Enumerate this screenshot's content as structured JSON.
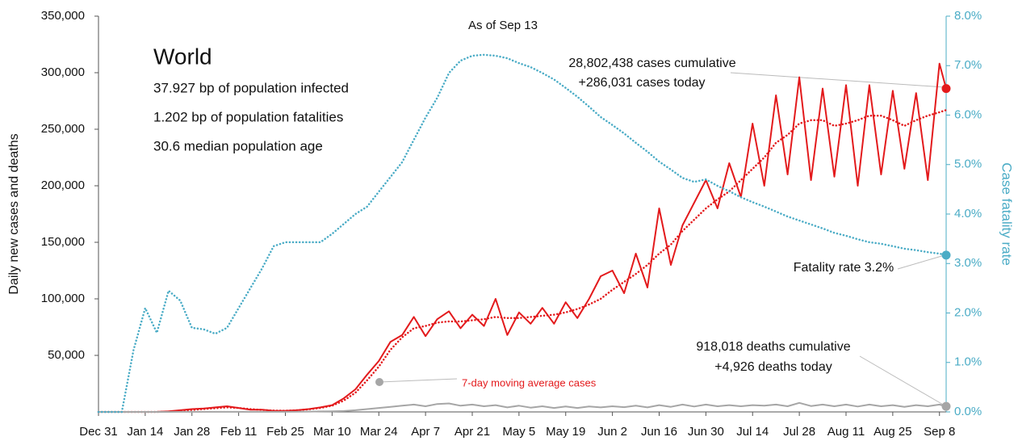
{
  "chart_data": {
    "type": "line",
    "title": "World",
    "subtitle": "As of Sep 13",
    "info": [
      "37.927 bp of population infected",
      "1.202 bp of population fatalities",
      "30.6 median population age"
    ],
    "y_label": "Daily new cases and deaths",
    "y2_label": "Case fatality rate",
    "annotations": {
      "cases": [
        "28,802,438  cases cumulative",
        "+286,031  cases today"
      ],
      "fatality": "Fatality rate 3.2%",
      "deaths": [
        "918,018  deaths cumulative",
        "+4,926  deaths today"
      ]
    },
    "x": [
      0,
      3.5,
      7,
      10.5,
      14,
      17.5,
      21,
      24.5,
      28,
      31.5,
      35,
      38.5,
      42,
      45.5,
      49,
      52.5,
      56,
      59.5,
      63,
      66.5,
      70,
      73.5,
      77,
      80.5,
      84,
      87.5,
      91,
      94.5,
      98,
      101.5,
      105,
      108.5,
      112,
      115.5,
      119,
      122.5,
      126,
      129.5,
      133,
      136.5,
      140,
      143.5,
      147,
      150.5,
      154,
      157.5,
      161,
      164.5,
      168,
      171.5,
      175,
      178.5,
      182,
      185.5,
      189,
      192.5,
      196,
      199.5,
      203,
      206.5,
      210,
      213.5,
      217,
      220.5,
      224,
      227.5,
      231,
      234.5,
      238,
      241.5,
      245,
      248.5,
      252,
      254
    ],
    "xlim": [
      0,
      254
    ],
    "xticks": [
      {
        "value": 0,
        "label": "Dec 31"
      },
      {
        "value": 14,
        "label": "Jan 14"
      },
      {
        "value": 28,
        "label": "Jan 28"
      },
      {
        "value": 42,
        "label": "Feb 11"
      },
      {
        "value": 56,
        "label": "Feb 25"
      },
      {
        "value": 70,
        "label": "Mar 10"
      },
      {
        "value": 84,
        "label": "Mar 24"
      },
      {
        "value": 98,
        "label": "Apr 7"
      },
      {
        "value": 112,
        "label": "Apr 21"
      },
      {
        "value": 126,
        "label": "May 5"
      },
      {
        "value": 140,
        "label": "May 19"
      },
      {
        "value": 154,
        "label": "Jun 2"
      },
      {
        "value": 168,
        "label": "Jun 16"
      },
      {
        "value": 182,
        "label": "Jun 30"
      },
      {
        "value": 196,
        "label": "Jul 14"
      },
      {
        "value": 210,
        "label": "Jul 28"
      },
      {
        "value": 224,
        "label": "Aug 11"
      },
      {
        "value": 238,
        "label": "Aug 25"
      },
      {
        "value": 252,
        "label": "Sep 8"
      }
    ],
    "ylim": [
      0,
      350000
    ],
    "yticks": [
      {
        "value": 50000,
        "label": "50,000"
      },
      {
        "value": 100000,
        "label": "100,000"
      },
      {
        "value": 150000,
        "label": "150,000"
      },
      {
        "value": 200000,
        "label": "200,000"
      },
      {
        "value": 250000,
        "label": "250,000"
      },
      {
        "value": 300000,
        "label": "300,000"
      },
      {
        "value": 350000,
        "label": "350,000"
      }
    ],
    "y2lim": [
      0,
      8
    ],
    "y2ticks": [
      {
        "value": 0,
        "label": "0.0%"
      },
      {
        "value": 1,
        "label": "1.0%"
      },
      {
        "value": 2,
        "label": "2.0%"
      },
      {
        "value": 3,
        "label": "3.0%"
      },
      {
        "value": 4,
        "label": "4.0%"
      },
      {
        "value": 5,
        "label": "5.0%"
      },
      {
        "value": 6,
        "label": "6.0%"
      },
      {
        "value": 7,
        "label": "7.0%"
      },
      {
        "value": 8,
        "label": "8.0%"
      }
    ],
    "series": [
      {
        "color": "#e31a1c",
        "style": "solid",
        "end_marker": true,
        "values": [
          0,
          0,
          0,
          0,
          0,
          100,
          600,
          1500,
          2500,
          3000,
          4000,
          5000,
          3500,
          2000,
          2000,
          1000,
          1000,
          1500,
          2500,
          4000,
          6000,
          12000,
          20000,
          33000,
          45000,
          62000,
          68000,
          84000,
          67000,
          82000,
          89000,
          74000,
          86000,
          76000,
          100000,
          68000,
          88000,
          78000,
          92000,
          78000,
          97000,
          83000,
          100000,
          120000,
          125000,
          105000,
          140000,
          110000,
          180000,
          130000,
          165000,
          185000,
          205000,
          180000,
          220000,
          190000,
          255000,
          200000,
          280000,
          210000,
          296000,
          205000,
          286000,
          208000,
          289000,
          200000,
          289000,
          210000,
          284000,
          215000,
          282000,
          205000,
          308000,
          286000
        ]
      },
      {
        "name": "7-day moving average cases",
        "color": "#e31a1c",
        "style": "dotted",
        "values": [
          0,
          0,
          0,
          0,
          0,
          0,
          300,
          1000,
          1800,
          2600,
          3300,
          4000,
          3500,
          2500,
          1800,
          1200,
          1100,
          1500,
          2300,
          3500,
          5500,
          10000,
          17000,
          28000,
          40000,
          55000,
          66000,
          74000,
          76000,
          79000,
          80000,
          80000,
          81000,
          82000,
          84000,
          83000,
          83000,
          84000,
          85000,
          86000,
          88000,
          91000,
          95000,
          100000,
          108000,
          115000,
          122000,
          130000,
          140000,
          148000,
          160000,
          170000,
          180000,
          188000,
          195000,
          205000,
          215000,
          225000,
          238000,
          245000,
          255000,
          258000,
          258000,
          253000,
          255000,
          258000,
          262000,
          262000,
          258000,
          253000,
          258000,
          262000,
          265000,
          267000
        ]
      },
      {
        "color": "#a6a6a6",
        "style": "solid",
        "end_marker": true,
        "values": [
          0,
          0,
          0,
          0,
          0,
          0,
          20,
          40,
          60,
          80,
          100,
          100,
          100,
          100,
          100,
          100,
          100,
          200,
          300,
          400,
          500,
          800,
          1500,
          2500,
          3500,
          4500,
          5500,
          6500,
          5000,
          7000,
          7500,
          5500,
          6500,
          5000,
          6000,
          4000,
          5500,
          3800,
          5000,
          3500,
          4800,
          3500,
          4800,
          4000,
          5000,
          4200,
          5500,
          4000,
          6000,
          4500,
          6500,
          4800,
          6500,
          5000,
          6000,
          5000,
          6000,
          5500,
          6500,
          5000,
          8000,
          5200,
          6500,
          5000,
          6500,
          4800,
          6500,
          5000,
          6000,
          4500,
          6000,
          5000,
          6500,
          4926
        ]
      },
      {
        "color": "#4bacc6",
        "style": "dotted",
        "axis": "y2",
        "end_marker": true,
        "values": [
          0,
          0,
          0,
          1.25,
          2.1,
          1.6,
          2.45,
          2.25,
          1.7,
          1.67,
          1.58,
          1.7,
          2.1,
          2.5,
          2.9,
          3.35,
          3.43,
          3.43,
          3.43,
          3.43,
          3.6,
          3.8,
          4.0,
          4.15,
          4.45,
          4.75,
          5.05,
          5.5,
          5.95,
          6.35,
          6.85,
          7.1,
          7.2,
          7.22,
          7.2,
          7.15,
          7.05,
          6.97,
          6.85,
          6.72,
          6.55,
          6.37,
          6.17,
          5.96,
          5.8,
          5.63,
          5.44,
          5.26,
          5.06,
          4.9,
          4.73,
          4.65,
          4.7,
          4.57,
          4.46,
          4.34,
          4.24,
          4.15,
          4.05,
          3.95,
          3.87,
          3.79,
          3.71,
          3.62,
          3.56,
          3.49,
          3.43,
          3.4,
          3.35,
          3.3,
          3.27,
          3.23,
          3.2,
          3.17
        ]
      }
    ]
  }
}
